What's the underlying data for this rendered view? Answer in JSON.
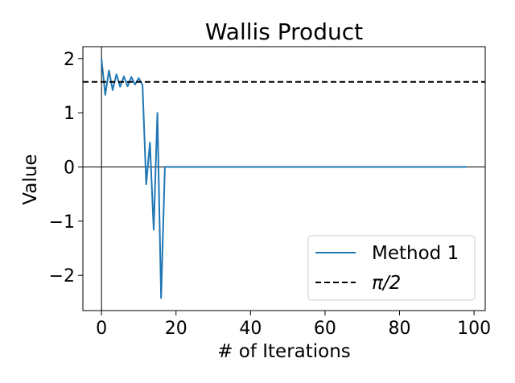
{
  "chart_data": {
    "type": "line",
    "title": "Wallis Product",
    "xlabel": "# of Iterations",
    "ylabel": "Value",
    "xlim": [
      -5,
      103
    ],
    "ylim": [
      -2.65,
      2.22
    ],
    "x_ticks": [
      0,
      20,
      40,
      60,
      80,
      100
    ],
    "y_ticks": [
      2,
      1,
      0,
      -1,
      -2
    ],
    "grid": false,
    "legend_position": "lower-right",
    "reference_lines": [
      {
        "axis": "x",
        "value": 0,
        "color": "#000000"
      },
      {
        "axis": "y",
        "value": 0,
        "color": "#000000"
      }
    ],
    "series": [
      {
        "name": "Method 1",
        "color": "#1f77b4",
        "style": "solid",
        "x": [
          0,
          1,
          2,
          3,
          4,
          5,
          6,
          7,
          8,
          9,
          10,
          11,
          12,
          13,
          14,
          15,
          16,
          17,
          18,
          20,
          30,
          40,
          50,
          60,
          70,
          80,
          90,
          98
        ],
        "y": [
          2.0,
          1.33,
          1.78,
          1.42,
          1.71,
          1.48,
          1.67,
          1.49,
          1.66,
          1.52,
          1.64,
          1.51,
          -0.32,
          0.45,
          -1.16,
          1.0,
          -2.42,
          0.0,
          0.0,
          0.0,
          0.0,
          0.0,
          0.0,
          0.0,
          0.0,
          0.0,
          0.0,
          0.0
        ]
      },
      {
        "name": "π/2",
        "color": "#000000",
        "style": "dashed",
        "hline": 1.5708
      }
    ],
    "legend": [
      {
        "label": "Method 1",
        "italic_pi": false
      },
      {
        "label": "π/2",
        "italic_pi": true
      }
    ]
  }
}
